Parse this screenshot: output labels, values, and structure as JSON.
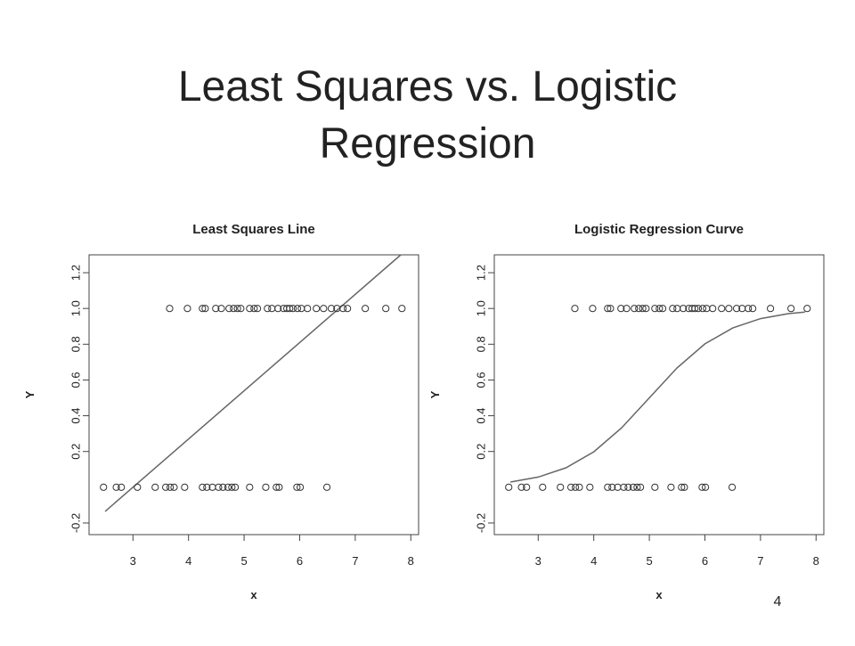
{
  "title_lines": [
    "Least Squares vs. Logistic",
    "Regression"
  ],
  "page_number": "4",
  "chart_data": [
    {
      "type": "scatter",
      "title": "Least Squares Line",
      "xlabel": "x",
      "ylabel": "Y",
      "xlim": [
        2.21,
        8.14
      ],
      "ylim": [
        -0.265,
        1.3
      ],
      "xticks": [
        3,
        4,
        5,
        6,
        7,
        8
      ],
      "yticks": [
        -0.2,
        0.2,
        0.4,
        0.6,
        0.8,
        {
          "value": 1,
          "label": "1.0"
        },
        1.2
      ],
      "point_color": "#333333",
      "line_color": "#666666",
      "points": {
        "x": [
          3.66,
          3.98,
          4.25,
          4.3,
          4.49,
          4.59,
          4.73,
          4.81,
          4.88,
          4.94,
          5.1,
          5.18,
          5.24,
          5.42,
          5.5,
          5.61,
          5.71,
          5.77,
          5.82,
          5.88,
          5.96,
          6.03,
          6.14,
          6.3,
          6.43,
          6.57,
          6.67,
          6.78,
          6.86,
          7.18,
          7.55,
          7.84,
          2.47,
          2.7,
          2.79,
          3.08,
          3.4,
          3.59,
          3.67,
          3.74,
          3.93,
          4.25,
          4.33,
          4.43,
          4.54,
          4.62,
          4.71,
          4.78,
          4.84,
          5.1,
          5.39,
          5.58,
          5.63,
          5.95,
          6.01,
          6.49
        ],
        "values": [
          1,
          1,
          1,
          1,
          1,
          1,
          1,
          1,
          1,
          1,
          1,
          1,
          1,
          1,
          1,
          1,
          1,
          1,
          1,
          1,
          1,
          1,
          1,
          1,
          1,
          1,
          1,
          1,
          1,
          1,
          1,
          1,
          0,
          0,
          0,
          0,
          0,
          0,
          0,
          0,
          0,
          0,
          0,
          0,
          0,
          0,
          0,
          0,
          0,
          0,
          0,
          0,
          0,
          0,
          0,
          0
        ]
      },
      "fit": {
        "type": "line",
        "x": [
          2.5,
          7.82
        ],
        "values": [
          -0.135,
          1.3
        ]
      }
    },
    {
      "type": "scatter",
      "title": "Logistic Regression Curve",
      "xlabel": "x",
      "ylabel": "Y",
      "xlim": [
        2.21,
        8.14
      ],
      "ylim": [
        -0.265,
        1.3
      ],
      "xticks": [
        3,
        4,
        5,
        6,
        7,
        8
      ],
      "yticks": [
        -0.2,
        0.2,
        0.4,
        0.6,
        0.8,
        {
          "value": 1,
          "label": "1.0"
        },
        1.2
      ],
      "point_color": "#333333",
      "line_color": "#666666",
      "points": {
        "x": [
          3.66,
          3.98,
          4.25,
          4.3,
          4.49,
          4.59,
          4.73,
          4.81,
          4.88,
          4.94,
          5.1,
          5.18,
          5.24,
          5.42,
          5.5,
          5.61,
          5.71,
          5.77,
          5.82,
          5.88,
          5.96,
          6.03,
          6.14,
          6.3,
          6.43,
          6.57,
          6.67,
          6.78,
          6.86,
          7.18,
          7.55,
          7.84,
          2.47,
          2.7,
          2.79,
          3.08,
          3.4,
          3.59,
          3.67,
          3.74,
          3.93,
          4.25,
          4.33,
          4.43,
          4.54,
          4.62,
          4.71,
          4.78,
          4.84,
          5.1,
          5.39,
          5.58,
          5.63,
          5.95,
          6.01,
          6.49
        ],
        "values": [
          1,
          1,
          1,
          1,
          1,
          1,
          1,
          1,
          1,
          1,
          1,
          1,
          1,
          1,
          1,
          1,
          1,
          1,
          1,
          1,
          1,
          1,
          1,
          1,
          1,
          1,
          1,
          1,
          1,
          1,
          1,
          1,
          0,
          0,
          0,
          0,
          0,
          0,
          0,
          0,
          0,
          0,
          0,
          0,
          0,
          0,
          0,
          0,
          0,
          0,
          0,
          0,
          0,
          0,
          0,
          0
        ]
      },
      "fit": {
        "type": "line",
        "x": [
          2.5,
          3,
          3.5,
          4,
          4.5,
          5,
          5.5,
          6,
          6.5,
          7,
          7.5,
          7.8
        ],
        "values": [
          0.029,
          0.057,
          0.109,
          0.198,
          0.332,
          0.5,
          0.668,
          0.802,
          0.891,
          0.943,
          0.971,
          0.98
        ]
      }
    }
  ]
}
